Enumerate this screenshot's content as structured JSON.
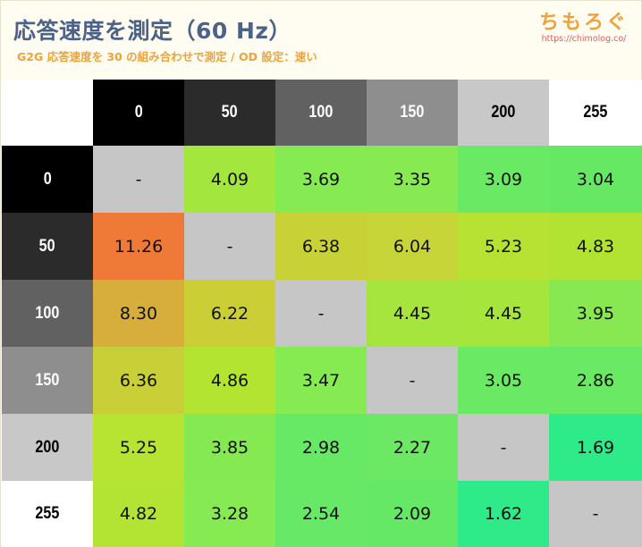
{
  "title": "応答速度を測定（60 Hz）",
  "subtitle": "G2G 応答速度を 30 の組み合わせで測定 / OD 設定：速い",
  "brand": {
    "name": "ちもろぐ",
    "url": "https://chimolog.co/"
  },
  "chart_data": {
    "type": "heatmap",
    "x_categories": [
      "0",
      "50",
      "100",
      "150",
      "200",
      "255"
    ],
    "y_categories": [
      "0",
      "50",
      "100",
      "150",
      "200",
      "255"
    ],
    "values": [
      [
        "-",
        "4.09",
        "3.69",
        "3.35",
        "3.09",
        "3.04"
      ],
      [
        "11.26",
        "-",
        "6.38",
        "6.04",
        "5.23",
        "4.83"
      ],
      [
        "8.30",
        "6.22",
        "-",
        "4.45",
        "4.45",
        "3.95"
      ],
      [
        "6.36",
        "4.86",
        "3.47",
        "-",
        "3.05",
        "2.86"
      ],
      [
        "5.25",
        "3.85",
        "2.98",
        "2.27",
        "-",
        "1.69"
      ],
      [
        "4.82",
        "3.28",
        "2.54",
        "2.09",
        "1.62",
        "-"
      ]
    ],
    "cell_colors": [
      [
        "#c6c6c6",
        "#a3e63e",
        "#86ea52",
        "#87ea53",
        "#6ae964",
        "#67e865"
      ],
      [
        "#ef7a38",
        "#c6c6c6",
        "#c8d236",
        "#c8d538",
        "#b8e233",
        "#b2e332"
      ],
      [
        "#d7ad3c",
        "#cbce35",
        "#c6c6c6",
        "#a5e53d",
        "#a5e53c",
        "#88e851"
      ],
      [
        "#c9cf36",
        "#b3e432",
        "#86ea52",
        "#c6c6c6",
        "#6ae964",
        "#6ae964"
      ],
      [
        "#b7e333",
        "#85ea52",
        "#68e965",
        "#6ce864",
        "#c6c6c6",
        "#2eea88"
      ],
      [
        "#b4e433",
        "#86ea52",
        "#67e866",
        "#64e866",
        "#2eea88",
        "#c6c6c6"
      ]
    ],
    "header_colors": [
      "#000000",
      "#2b2b2b",
      "#616161",
      "#8e8e8e",
      "#c8c8c8",
      "#ffffff"
    ],
    "header_text_colors": [
      "#ffffff",
      "#ffffff",
      "#ffffff",
      "#ffffff",
      "#000000",
      "#000000"
    ]
  }
}
